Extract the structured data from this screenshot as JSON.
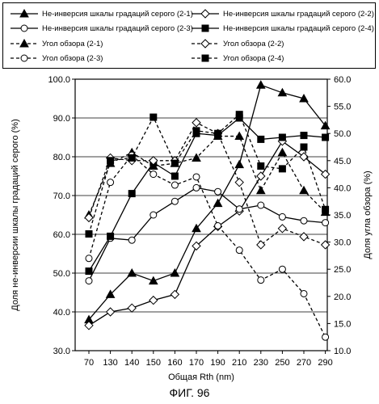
{
  "figure_caption": "ФИГ. 96",
  "chart_data": {
    "type": "line",
    "xlabel": "Общая Rth (nm)",
    "ylabel": "Доля не-инверсии шкалы градаций серого (%)",
    "y2label": "Доля угла обзора (%)",
    "x": [
      70,
      130,
      140,
      150,
      160,
      170,
      190,
      210,
      230,
      250,
      270,
      290
    ],
    "xtick_labels": [
      "70",
      "130",
      "140",
      "150",
      "160",
      "170",
      "190",
      "210",
      "230",
      "250",
      "270",
      "290"
    ],
    "ylim": [
      30,
      100
    ],
    "yticks": [
      30,
      40,
      50,
      60,
      70,
      80,
      90,
      100
    ],
    "ytick_labels": [
      "30.0",
      "40.0",
      "50.0",
      "60.0",
      "70.0",
      "80.0",
      "90.0",
      "100.0"
    ],
    "y2lim": [
      10,
      60
    ],
    "y2ticks": [
      10,
      15,
      20,
      25,
      30,
      35,
      40,
      45,
      50,
      55,
      60
    ],
    "y2tick_labels": [
      "10.0",
      "15.0",
      "20.0",
      "25.0",
      "30.0",
      "35.0",
      "40.0",
      "45.0",
      "50.0",
      "55.0",
      "60.0"
    ],
    "grid": "horizontal",
    "legend_position": "top",
    "series": [
      {
        "name": "Не-инверсия  шкалы градаций серого (2-1)",
        "axis": "left",
        "style": "solid",
        "marker": "triangle",
        "values": [
          38,
          44.5,
          50,
          48,
          50,
          61.5,
          68,
          78,
          98.5,
          96.5,
          95,
          88
        ]
      },
      {
        "name": "Не-инверсия  шкалы градаций серого (2-2)",
        "axis": "left",
        "style": "solid",
        "marker": "diamond",
        "values": [
          36.5,
          40,
          41,
          43,
          44.5,
          57,
          62,
          66,
          75,
          84,
          80,
          75.5
        ]
      },
      {
        "name": "Не-инверсия шкалы градаций серого (2-3)",
        "axis": "left",
        "style": "solid",
        "marker": "circle",
        "values": [
          48,
          59,
          58.5,
          65,
          68.5,
          72,
          71,
          66.5,
          67.5,
          64.5,
          63.5,
          63
        ]
      },
      {
        "name": "Не-инверсия шкалы градаций серого (2-4)",
        "axis": "left",
        "style": "solid",
        "marker": "square",
        "values": [
          50.5,
          59.5,
          70.5,
          78.5,
          75,
          86,
          85.5,
          90,
          84.5,
          85,
          85.5,
          85
        ]
      },
      {
        "name": "Угол обзора (2-1)",
        "axis": "right",
        "style": "dashed",
        "marker": "triangle",
        "values": [
          35,
          44.5,
          46.5,
          44,
          44.5,
          45.5,
          49.5,
          49.5,
          39.5,
          46.5,
          39.5,
          35.5
        ]
      },
      {
        "name": "Угол обзора (2-2)",
        "axis": "right",
        "style": "dashed",
        "marker": "diamond",
        "values": [
          34.5,
          45.5,
          45,
          45,
          45,
          52,
          50,
          41,
          29.5,
          32.5,
          31,
          29.5
        ]
      },
      {
        "name": "Угол обзора (2-3)",
        "axis": "right",
        "style": "dashed",
        "marker": "circle",
        "values": [
          27,
          41,
          46,
          42.5,
          40.5,
          42,
          33,
          28.5,
          23,
          25,
          20.5,
          12.5
        ]
      },
      {
        "name": "Угол обзора (2-4)",
        "axis": "right",
        "style": "dashed",
        "marker": "square",
        "values": [
          31.5,
          45,
          45.5,
          53,
          44.5,
          50.5,
          50,
          53.5,
          44,
          43.5,
          47.5,
          36
        ]
      }
    ]
  }
}
